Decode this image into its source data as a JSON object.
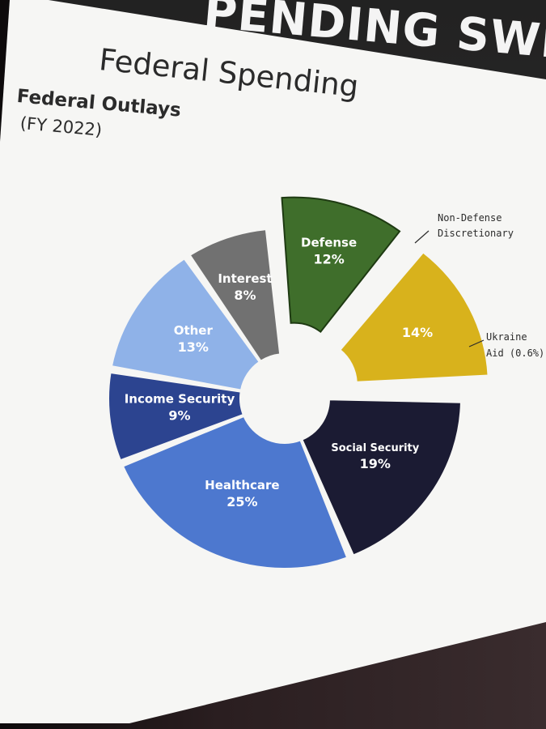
{
  "banner": {
    "text": "PENDING SWELL"
  },
  "slide_title": "Federal Spending",
  "chart_data": {
    "type": "pie",
    "title": "Federal Outlays",
    "subtitle": "(FY 2022)",
    "slices": [
      {
        "name": "Defense",
        "value": 12,
        "label": "12%",
        "color": "#3f6e2b"
      },
      {
        "name": "Non-Defense Discretionary",
        "value": 14,
        "label": "14%",
        "color": "#d8b21c"
      },
      {
        "name": "Ukraine Aid",
        "value": 0.6,
        "label": "Ukraine Aid (0.6%)",
        "color": "#3a3a3a"
      },
      {
        "name": "Social Security",
        "value": 19,
        "label": "19%",
        "color": "#1b1b33"
      },
      {
        "name": "Healthcare",
        "value": 25,
        "label": "25%",
        "color": "#4d78cf"
      },
      {
        "name": "Income Security",
        "value": 9,
        "label": "9%",
        "color": "#2c4490"
      },
      {
        "name": "Other",
        "value": 13,
        "label": "13%",
        "color": "#8fb2e8"
      },
      {
        "name": "Interest",
        "value": 8,
        "label": "8%",
        "color": "#717171"
      }
    ],
    "callouts": {
      "non_defense": [
        "Non-Defense",
        "Discretionary"
      ],
      "ukraine": [
        "Ukraine",
        "Aid (0.6%)"
      ]
    }
  }
}
